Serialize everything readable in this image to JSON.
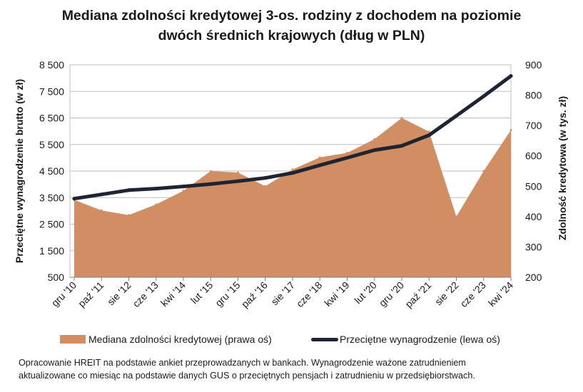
{
  "title_line1": "Mediana zdolności kredytowej 3-os. rodziny z dochodem na poziomie",
  "title_line2": "dwóch średnich krajowych (dług w PLN)",
  "colors": {
    "area": "#d08e62",
    "line": "#1f2433",
    "grid": "#bfbfbf"
  },
  "legend": {
    "area_label": "Mediana zdolności kredytowej (prawa oś)",
    "line_label": "Przeciętne wynagrodzenie (lewa oś)"
  },
  "footnote_line1": "Opracowanie HREIT na podstawie ankiet przeprowadzanych w bankach. Wynagrodzenie ważone zatrudnieniem",
  "footnote_line2": "aktualizowane co miesiąc na podstawie danych GUS o przeciętnych pensjach i zatrudnieniu w przedsiębiorstwach.",
  "chart_data": {
    "type": "line",
    "grid": true,
    "legend_position": "bottom",
    "y_left": {
      "label": "Przeciętne wynagrodzenie brutto (w zł)",
      "range": [
        500,
        8500
      ],
      "ticks": [
        "8 500",
        "7 500",
        "6 500",
        "5 500",
        "4 500",
        "3 500",
        "2 500",
        "1 500",
        "500"
      ]
    },
    "y_right": {
      "label": "Zdolność kredytowa (w tys. zł)",
      "range": [
        200,
        900
      ],
      "ticks": [
        "900",
        "800",
        "700",
        "600",
        "500",
        "400",
        "300",
        "200"
      ]
    },
    "x_ticks": [
      "gru '10",
      "paź '11",
      "sie '12",
      "cze '13",
      "kwi '14",
      "lut '15",
      "gru '15",
      "paź '16",
      "sie '17",
      "cze '18",
      "kwi '19",
      "lut '20",
      "gru '20",
      "paź '21",
      "sie '22",
      "cze '23",
      "kwi '24"
    ],
    "series": [
      {
        "name": "Mediana zdolności kredytowej (prawa oś)",
        "kind": "area",
        "axis": "right",
        "points": [
          [
            "gru '10",
            455
          ],
          [
            "paź '11",
            420
          ],
          [
            "sie '12",
            405
          ],
          [
            "cze '13",
            440
          ],
          [
            "kwi '14",
            485
          ],
          [
            "lut '15",
            550
          ],
          [
            "gru '15",
            545
          ],
          [
            "paź '16",
            500
          ],
          [
            "sie '17",
            555
          ],
          [
            "cze '18",
            595
          ],
          [
            "kwi '19",
            610
          ],
          [
            "lut '20",
            655
          ],
          [
            "gru '20",
            725
          ],
          [
            "paź '21",
            680
          ],
          [
            "sie '22",
            400
          ],
          [
            "cze '23",
            550
          ],
          [
            "kwi '24",
            685
          ]
        ]
      },
      {
        "name": "Przeciętne wynagrodzenie (lewa oś)",
        "kind": "line",
        "axis": "left",
        "points": [
          [
            "gru '10",
            3460
          ],
          [
            "paź '11",
            3620
          ],
          [
            "sie '12",
            3780
          ],
          [
            "cze '13",
            3840
          ],
          [
            "kwi '14",
            3920
          ],
          [
            "lut '15",
            4010
          ],
          [
            "gru '15",
            4120
          ],
          [
            "paź '16",
            4240
          ],
          [
            "sie '17",
            4430
          ],
          [
            "cze '18",
            4720
          ],
          [
            "kwi '19",
            5000
          ],
          [
            "lut '20",
            5290
          ],
          [
            "gru '20",
            5450
          ],
          [
            "paź '21",
            5850
          ],
          [
            "sie '22",
            6580
          ],
          [
            "cze '23",
            7320
          ],
          [
            "kwi '24",
            8080
          ]
        ]
      }
    ]
  }
}
